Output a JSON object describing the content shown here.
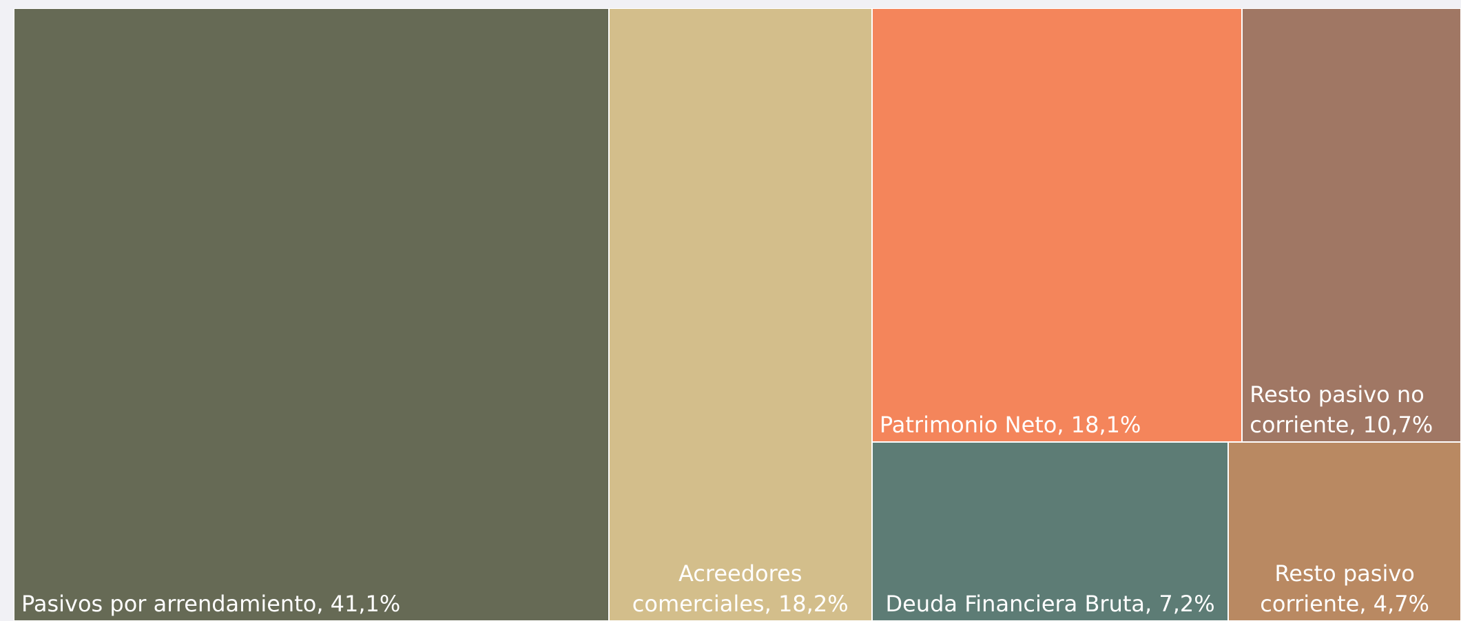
{
  "chart_data": {
    "type": "treemap",
    "categories": [
      "Pasivos por arrendamiento,",
      "Acreedores comerciales,",
      "Patrimonio Neto,",
      "Resto pasivo no corriente,",
      "Deuda Financiera Bruta,",
      "Resto pasivo corriente,"
    ],
    "values": [
      41.1,
      18.2,
      18.1,
      10.7,
      7.2,
      4.7
    ],
    "value_labels": [
      "41,1%",
      "18,2%",
      "18,1%",
      "10,7%",
      "7,2%",
      "4,7%"
    ],
    "colors": [
      "#666a55",
      "#d3be8b",
      "#f4855b",
      "#a07764",
      "#5d7c75",
      "#b98962"
    ]
  }
}
